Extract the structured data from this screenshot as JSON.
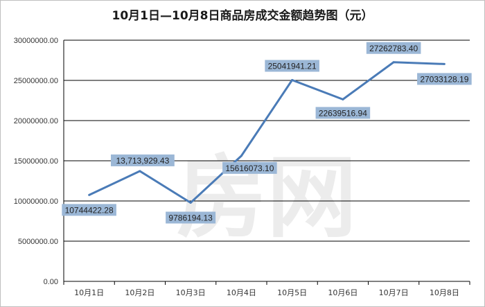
{
  "chart_data": {
    "type": "line",
    "title": "10月1日—10月8日商品房成交金额趋势图（元）",
    "categories": [
      "10月1日",
      "10月2日",
      "10月3日",
      "10月4日",
      "10月5日",
      "10月6日",
      "10月7日",
      "10月8日"
    ],
    "values": [
      10744422.28,
      13713929.43,
      9786194.13,
      15616073.1,
      25041941.21,
      22639516.94,
      27262783.4,
      27033128.19
    ],
    "data_labels": [
      "10744422.28",
      "13,713,929.43",
      "9786194.13",
      "15616073.10",
      "25041941.21",
      "22639516.94",
      "27262783.40",
      "27033128.19"
    ],
    "ylim": [
      0,
      30000000
    ],
    "yticks": [
      "0.00",
      "5000000.00",
      "10000000.00",
      "15000000.00",
      "20000000.00",
      "25000000.00",
      "30000000.00"
    ],
    "grid": true,
    "legend": "none",
    "line_color": "#4a7bb7",
    "label_bg_color": "#9bb7d6",
    "watermark": "房网"
  }
}
